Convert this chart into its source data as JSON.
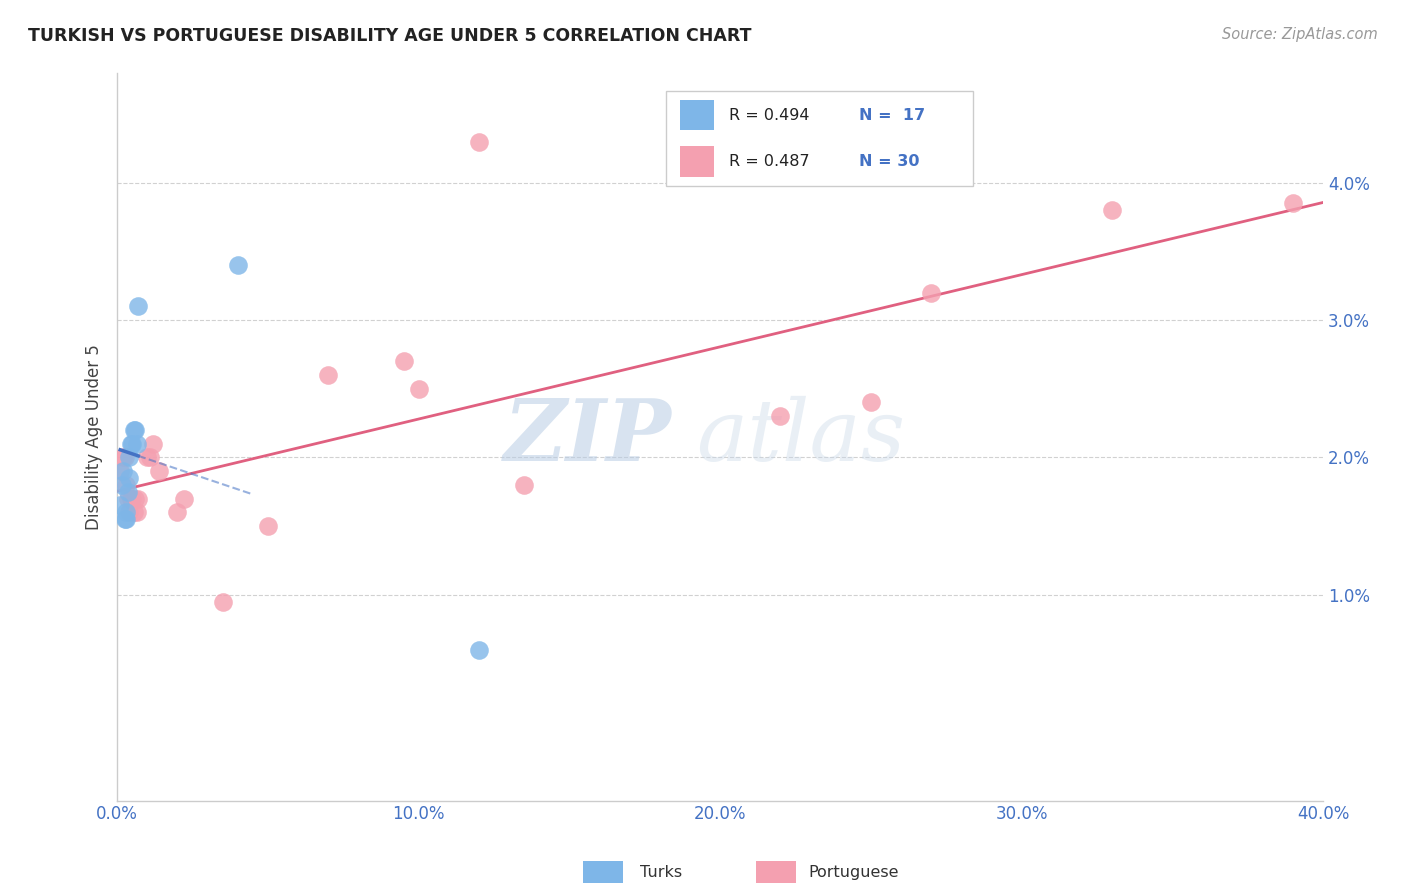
{
  "title": "TURKISH VS PORTUGUESE DISABILITY AGE UNDER 5 CORRELATION CHART",
  "source": "Source: ZipAtlas.com",
  "ylabel": "Disability Age Under 5",
  "ytick_labels": [
    "1.0%",
    "2.0%",
    "3.0%",
    "4.0%"
  ],
  "ytick_values": [
    1.0,
    2.0,
    3.0,
    4.0
  ],
  "xlim": [
    0.0,
    40.0
  ],
  "ylim": [
    -0.5,
    4.8
  ],
  "legend_turks_r": "R = 0.494",
  "legend_turks_n": "N =  17",
  "legend_port_r": "R = 0.487",
  "legend_port_n": "N = 30",
  "turks_color": "#7EB6E8",
  "port_color": "#F4A0B0",
  "trend_turks_color": "#4472C4",
  "trend_port_color": "#E06080",
  "turks_x": [
    0.1,
    0.15,
    0.2,
    0.25,
    0.3,
    0.3,
    0.35,
    0.4,
    0.4,
    0.45,
    0.5,
    0.55,
    0.6,
    0.65,
    0.7,
    4.0,
    12.0
  ],
  "turks_y": [
    1.65,
    1.8,
    1.9,
    1.55,
    1.55,
    1.6,
    1.75,
    1.85,
    2.0,
    2.1,
    2.1,
    2.2,
    2.2,
    2.1,
    3.1,
    3.4,
    0.6
  ],
  "port_x": [
    0.1,
    0.2,
    0.25,
    0.3,
    0.35,
    0.4,
    0.45,
    0.5,
    0.55,
    0.6,
    0.65,
    0.7,
    1.0,
    1.1,
    1.2,
    1.4,
    2.0,
    2.2,
    3.5,
    5.0,
    7.0,
    9.5,
    10.0,
    12.0,
    13.5,
    22.0,
    25.0,
    27.0,
    33.0,
    39.0
  ],
  "port_y": [
    1.9,
    2.0,
    2.0,
    1.8,
    1.7,
    1.6,
    1.7,
    1.7,
    1.6,
    1.7,
    1.6,
    1.7,
    2.0,
    2.0,
    2.1,
    1.9,
    1.6,
    1.7,
    0.95,
    1.5,
    2.6,
    2.7,
    2.5,
    4.3,
    1.8,
    2.3,
    2.4,
    3.2,
    3.8,
    3.85
  ],
  "watermark_zip": "ZIP",
  "watermark_atlas": "atlas",
  "background_color": "#FFFFFF",
  "grid_color": "#CCCCCC",
  "xtick_labels": [
    "0.0%",
    "10.0%",
    "20.0%",
    "30.0%",
    "40.0%"
  ],
  "xtick_values": [
    0.0,
    10.0,
    20.0,
    30.0,
    40.0
  ]
}
